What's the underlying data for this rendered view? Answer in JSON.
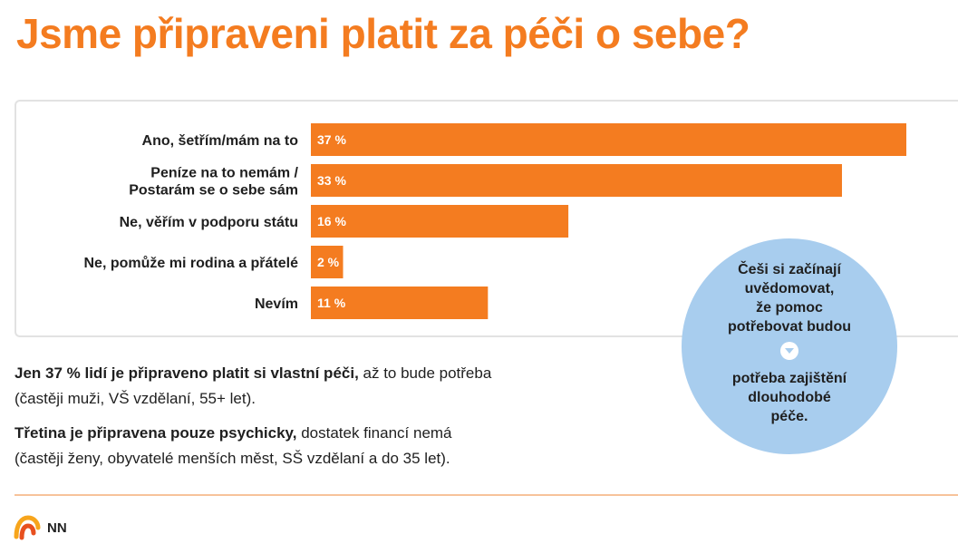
{
  "title": "Jsme připraveni platit za péči o sebe?",
  "chart_data": {
    "type": "bar",
    "orientation": "horizontal",
    "title": "",
    "categories": [
      [
        "Ano, šetřím/mám na to"
      ],
      [
        "Peníze na to nemám /",
        "Postarám se o sebe sám"
      ],
      [
        "Ne, věřím v podporu státu"
      ],
      [
        "Ne, pomůže mi rodina a přátelé"
      ],
      [
        "Nevím"
      ]
    ],
    "values": [
      37,
      33,
      16,
      2,
      11
    ],
    "value_labels": [
      "37 %",
      "33 %",
      "16 %",
      "2 %",
      "11 %"
    ],
    "xlim": [
      0,
      37
    ],
    "color": "#f47c20",
    "grid": false,
    "xlabel": "",
    "ylabel": ""
  },
  "bubble": {
    "lines_top": [
      "Češi si začínají",
      "uvědomovat,",
      "že pomoc",
      "potřebovat budou"
    ],
    "arrow_icon": "chevron-down-icon",
    "lines_bottom": [
      "potřeba zajištění",
      "dlouhodobé",
      "péče."
    ]
  },
  "notes": [
    {
      "bold": "Jen 37 % lidí je připraveno platit si vlastní péči,",
      "rest": " až to bude potřeba",
      "line2": "(častěji muži, VŠ vzdělaní, 55+ let)."
    },
    {
      "bold": "Třetina je připravena pouze psychicky,",
      "rest": " dostatek financí nemá",
      "line2": "(častěji ženy, obyvatelé menších měst, SŠ vzdělaní a do 35 let)."
    }
  ],
  "brand": "NN",
  "colors": {
    "accent": "#f47c20",
    "bubble": "#a8cdee",
    "divider": "#f7c39a"
  }
}
